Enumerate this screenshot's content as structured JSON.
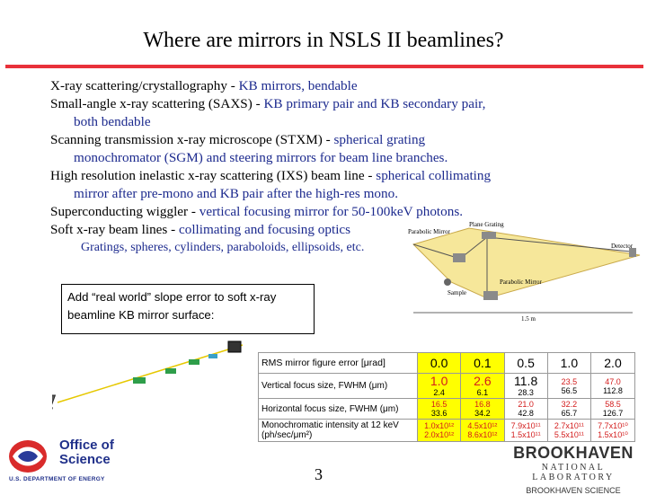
{
  "slide": {
    "title": "Where are mirrors in NSLS II beamlines?",
    "bullets": [
      {
        "lead": "X-ray scattering/crystallography - ",
        "detail": "KB mirrors, bendable",
        "cont": ""
      },
      {
        "lead": "Small-angle x-ray scattering (SAXS) - ",
        "detail": "KB primary pair and KB secondary pair,",
        "cont": "both bendable"
      },
      {
        "lead": "Scanning transmission x-ray microscope (STXM) - ",
        "detail": "spherical grating",
        "cont": "monochromator (SGM) and steering mirrors for beam line branches."
      },
      {
        "lead": "High resolution inelastic x-ray scattering (IXS) beam line - ",
        "detail": "spherical collimating",
        "cont": "mirror after pre-mono and KB pair after the high-res mono."
      },
      {
        "lead": "Superconducting wiggler - ",
        "detail": "vertical focusing mirror for 50-100keV photons.",
        "cont": ""
      },
      {
        "lead": "Soft x-ray beam lines - ",
        "detail": "collimating and focusing optics",
        "cont": ""
      }
    ],
    "sub_bullet": "Gratings, spheres, cylinders, paraboloids, ellipsoids, etc.",
    "note": "Add “real world” slope error to soft x-ray beamline KB mirror surface:",
    "diagram": {
      "labels": [
        "Parabolic Mirror",
        "Plane Grating",
        "Detector",
        "Sample",
        "Parabolic Mirror",
        "1.5 m"
      ]
    },
    "table": {
      "rows": [
        {
          "label": "RMS mirror figure error [μrad]",
          "cells": [
            {
              "top": "0.0"
            },
            {
              "top": "0.1"
            },
            {
              "top": "0.5"
            },
            {
              "top": "1.0"
            },
            {
              "top": "2.0"
            }
          ]
        },
        {
          "label": "Vertical focus size, FWHM (μm)",
          "cells": [
            {
              "top": "1.0",
              "bot": "2.4"
            },
            {
              "top": "2.6",
              "bot": "6.1"
            },
            {
              "top": "11.8",
              "bot": "28.3"
            },
            {
              "top": "23.5",
              "bot": "56.5"
            },
            {
              "top": "47.0",
              "bot": "112.8"
            }
          ]
        },
        {
          "label": "Horizontal focus size, FWHM (μm)",
          "cells": [
            {
              "top": "16.5",
              "bot": "33.6"
            },
            {
              "top": "16.8",
              "bot": "34.2"
            },
            {
              "top": "21.0",
              "bot": "42.8"
            },
            {
              "top": "32.2",
              "bot": "65.7"
            },
            {
              "top": "58.5",
              "bot": "126.7"
            }
          ]
        },
        {
          "label": "Monochromatic intensity at 12 keV",
          "label2": "(ph/sec/μm²)",
          "cells": [
            {
              "top": "1.0x10¹²",
              "bot": "2.0x10¹²"
            },
            {
              "top": "4.5x10¹²",
              "bot": "8.6x10¹²"
            },
            {
              "top": "7.9x10¹¹",
              "bot": "1.5x10¹¹"
            },
            {
              "top": "2.7x10¹¹",
              "bot": "5.5x10¹¹"
            },
            {
              "top": "7.7x10¹⁰",
              "bot": "1.5x10¹⁰"
            }
          ]
        }
      ]
    },
    "page_number": "3",
    "doe": {
      "office": "Office of",
      "science": "Science",
      "dept": "U.S. DEPARTMENT OF ENERGY"
    },
    "bnl": {
      "name": "BROOKHAVEN",
      "lab": "NATIONAL LABORATORY",
      "sci": "BROOKHAVEN SCIENCE"
    },
    "colors": {
      "accent_rule": "#e8313a",
      "detail_text": "#1c2a8e",
      "highlight": "#ffff00",
      "red_value": "#d31c1c"
    }
  }
}
